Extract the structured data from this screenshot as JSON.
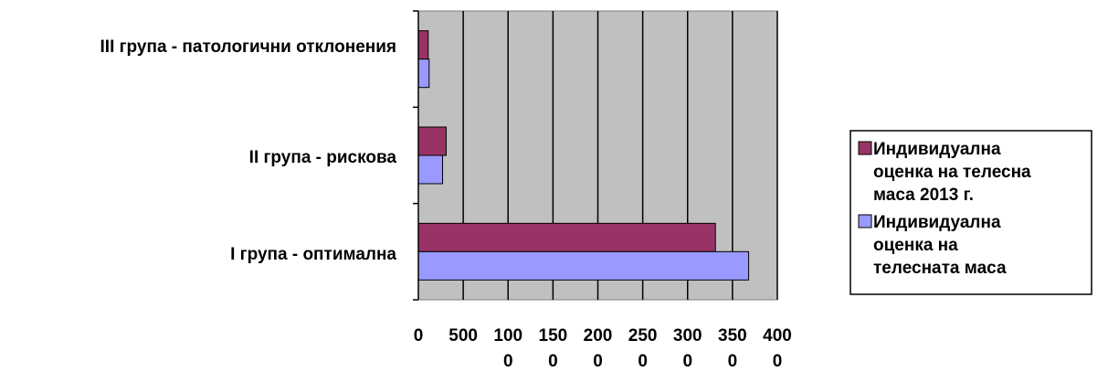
{
  "chart_data": {
    "type": "bar",
    "orientation": "horizontal",
    "categories": [
      "I група - оптимална",
      "II група - рискова",
      "III група - патологични отклонения"
    ],
    "series": [
      {
        "name": "Индивидуална оценка на телесна маса 2013 г.",
        "color": "#993366",
        "values": [
          3310,
          310,
          110
        ]
      },
      {
        "name": "Индивидуална оценка на телесната маса",
        "color": "#9999ff",
        "values": [
          3680,
          270,
          120
        ]
      }
    ],
    "xlim": [
      0,
      4000
    ],
    "x_ticks": [
      {
        "line1": "0",
        "line2": ""
      },
      {
        "line1": "500",
        "line2": ""
      },
      {
        "line1": "100",
        "line2": "0"
      },
      {
        "line1": "150",
        "line2": "0"
      },
      {
        "line1": "200",
        "line2": "0"
      },
      {
        "line1": "250",
        "line2": "0"
      },
      {
        "line1": "300",
        "line2": "0"
      },
      {
        "line1": "350",
        "line2": "0"
      },
      {
        "line1": "400",
        "line2": "0"
      }
    ],
    "legend": {
      "position": "right",
      "entries": [
        {
          "lines": [
            "Индивидуална",
            "оценка на телесна",
            "маса 2013 г."
          ]
        },
        {
          "lines": [
            "Индивидуална",
            "оценка на",
            "телесната маса"
          ]
        }
      ]
    },
    "grid": true,
    "plot_background": "#c0c0c0"
  }
}
